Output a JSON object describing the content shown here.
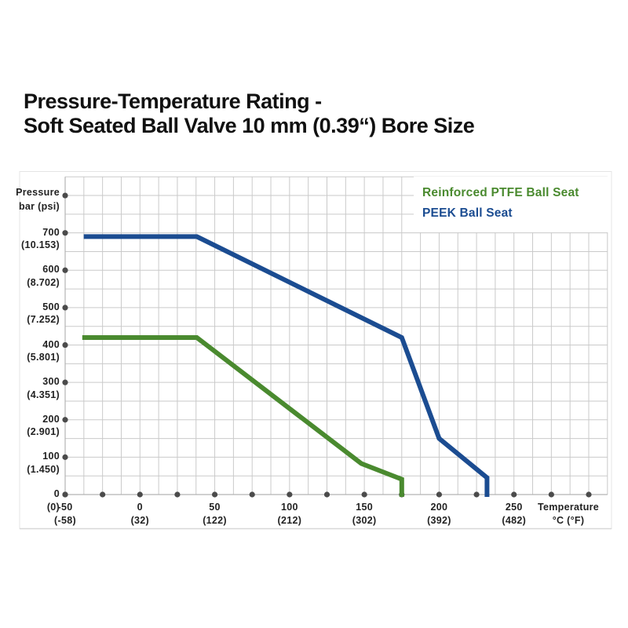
{
  "title": {
    "line1": "Pressure-Temperature Rating -",
    "line2": "Soft Seated Ball Valve 10 mm (0.39“) Bore Size"
  },
  "chart_data": {
    "type": "line",
    "title": "Pressure-Temperature Rating - Soft Seated Ball Valve 10 mm (0.39\") Bore Size",
    "grid": "on",
    "x_axis": {
      "label_line1": "Temperature",
      "label_line2": "°C (°F)",
      "range_c": [
        -50,
        313
      ],
      "dot_step_c": 25,
      "minor_grid_step_c": 12.5,
      "ticks": [
        {
          "value": -50,
          "c": "-50",
          "f": "(-58)"
        },
        {
          "value": 0,
          "c": "0",
          "f": "(32)"
        },
        {
          "value": 50,
          "c": "50",
          "f": "(122)"
        },
        {
          "value": 100,
          "c": "100",
          "f": "(212)"
        },
        {
          "value": 150,
          "c": "150",
          "f": "(302)"
        },
        {
          "value": 200,
          "c": "200",
          "f": "(392)"
        },
        {
          "value": 250,
          "c": "250",
          "f": "(482)"
        }
      ]
    },
    "y_axis": {
      "label_line1": "Pressure",
      "label_line2": "bar (psi)",
      "range_bar": [
        0,
        850
      ],
      "dot_step_bar": 100,
      "minor_grid_step_bar": 50,
      "ticks": [
        {
          "value": 700,
          "bar": "700",
          "psi": "(10.153)"
        },
        {
          "value": 600,
          "bar": "600",
          "psi": "(8.702)"
        },
        {
          "value": 500,
          "bar": "500",
          "psi": "(7.252)"
        },
        {
          "value": 400,
          "bar": "400",
          "psi": "(5.801)"
        },
        {
          "value": 300,
          "bar": "300",
          "psi": "(4.351)"
        },
        {
          "value": 200,
          "bar": "200",
          "psi": "(2.901)"
        },
        {
          "value": 100,
          "bar": "100",
          "psi": "(1.450)"
        },
        {
          "value": 0,
          "bar": "0",
          "psi": "(0)"
        }
      ]
    },
    "legend": {
      "position": "top-right"
    },
    "series": [
      {
        "name": "Reinforced PTFE Ball Seat",
        "color": "#4a8a2f",
        "points_c_bar": [
          [
            -37,
            420
          ],
          [
            38,
            420
          ],
          [
            148,
            83
          ],
          [
            175,
            41
          ],
          [
            175,
            0
          ]
        ]
      },
      {
        "name": "PEEK Ball Seat",
        "color": "#1b4c91",
        "points_c_bar": [
          [
            -36,
            690
          ],
          [
            38,
            690
          ],
          [
            175,
            420
          ],
          [
            200,
            150
          ],
          [
            232,
            45
          ],
          [
            232,
            0
          ]
        ]
      }
    ]
  },
  "colors": {
    "grid": "#cacaca",
    "axis": "#b3b3b3",
    "dot": "#4b4b4b",
    "panel_border": "#e4e4e4",
    "bottom_rule": "#d8d8d8",
    "ptfe_green": "#4a8a2f",
    "peek_blue": "#1b4c91"
  }
}
